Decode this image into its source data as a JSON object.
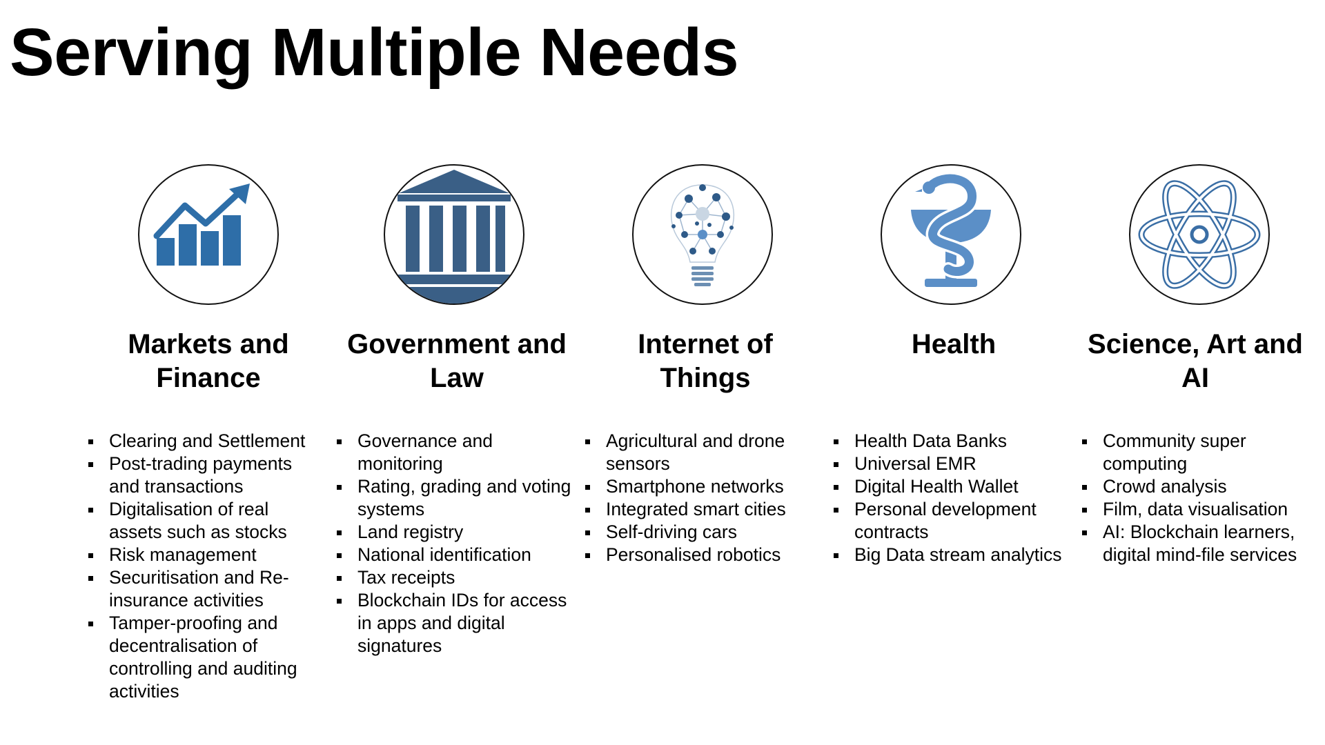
{
  "title": "Serving Multiple Needs",
  "colors": {
    "icon_blue": "#2e6ea8",
    "icon_navy": "#3a5f86",
    "icon_light_blue": "#5b8fc7",
    "circle_border": "#111111"
  },
  "columns": [
    {
      "icon": "chart-growth-icon",
      "heading_lines": [
        "Markets and",
        "Finance"
      ],
      "bullets": [
        "Clearing and Settlement",
        "Post-trading payments and transactions",
        "Digitalisation of real assets such as stocks",
        "Risk management",
        "Securitisation and Re-insurance activities",
        "Tamper-proofing and decentralisation of controlling and auditing activities"
      ]
    },
    {
      "icon": "courthouse-icon",
      "heading_lines": [
        "Government and",
        "Law"
      ],
      "bullets": [
        "Governance and monitoring",
        "Rating, grading and voting systems",
        "Land registry",
        "National identification",
        "Tax receipts",
        "Blockchain IDs for access in apps and digital signatures"
      ]
    },
    {
      "icon": "iot-lightbulb-icon",
      "heading_lines": [
        "Internet of",
        "Things"
      ],
      "bullets": [
        "Agricultural and drone sensors",
        "Smartphone networks",
        "Integrated smart cities",
        "Self-driving cars",
        "Personalised robotics"
      ]
    },
    {
      "icon": "bowl-of-hygieia-icon",
      "heading_lines": [
        "Health"
      ],
      "bullets": [
        "Health Data Banks",
        "Universal EMR",
        "Digital Health Wallet",
        "Personal development contracts",
        "Big Data stream analytics"
      ]
    },
    {
      "icon": "atom-icon",
      "heading_lines": [
        "Science, Art and",
        "AI"
      ],
      "bullets": [
        "Community super computing",
        "Crowd analysis",
        "Film, data visualisation",
        "AI: Blockchain learners, digital mind-file services"
      ]
    }
  ]
}
